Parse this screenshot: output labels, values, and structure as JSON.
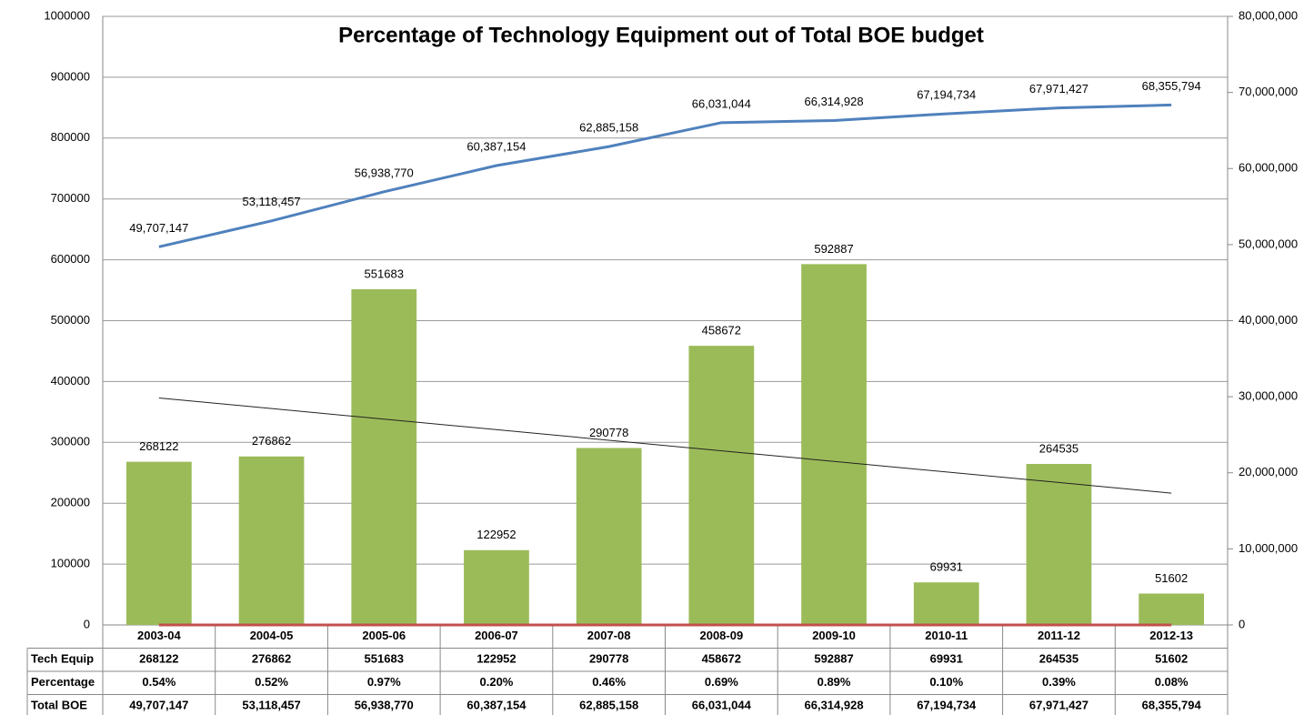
{
  "chart_data": {
    "type": "bar-line",
    "title": "Percentage of Technology Equipment out of Total BOE budget",
    "categories": [
      "2003-04",
      "2004-05",
      "2005-06",
      "2006-07",
      "2007-08",
      "2008-09",
      "2009-10",
      "2010-11",
      "2011-12",
      "2012-13"
    ],
    "series": [
      {
        "name": "Tech Equip",
        "type": "bar",
        "color": "#9bbb59",
        "axis": "y",
        "trendline": "linear",
        "values": [
          268122,
          276862,
          551683,
          122952,
          290778,
          458672,
          592887,
          69931,
          264535,
          51602
        ]
      },
      {
        "name": "Percentage",
        "type": "line",
        "color": "#c0504d",
        "axis": "y",
        "values": [
          0.54,
          0.52,
          0.97,
          0.2,
          0.46,
          0.69,
          0.89,
          0.1,
          0.39,
          0.08
        ],
        "value_labels": [
          "0.54%",
          "0.52%",
          "0.97%",
          "0.20%",
          "0.46%",
          "0.69%",
          "0.89%",
          "0.10%",
          "0.39%",
          "0.08%"
        ]
      },
      {
        "name": "Total BOE",
        "type": "line",
        "color": "#4f81bd",
        "axis": "y2",
        "values": [
          49707147,
          53118457,
          56938770,
          60387154,
          62885158,
          66031044,
          66314928,
          67194734,
          67971427,
          68355794
        ],
        "value_labels": [
          "49,707,147",
          "53,118,457",
          "56,938,770",
          "60,387,154",
          "62,885,158",
          "66,031,044",
          "66,314,928",
          "67,194,734",
          "67,971,427",
          "68,355,794"
        ]
      }
    ],
    "ylim": [
      0,
      1000000
    ],
    "yticks": [
      0,
      100000,
      200000,
      300000,
      400000,
      500000,
      600000,
      700000,
      800000,
      900000,
      1000000
    ],
    "y2lim": [
      0,
      80000000
    ],
    "y2ticks": [
      0,
      {
        "value": 10000000,
        "label": "10,000,000"
      },
      {
        "value": 20000000,
        "label": "20,000,000"
      },
      {
        "value": 30000000,
        "label": "30,000,000"
      },
      {
        "value": 40000000,
        "label": "40,000,000"
      },
      {
        "value": 50000000,
        "label": "50,000,000"
      },
      {
        "value": 60000000,
        "label": "60,000,000"
      },
      {
        "value": 70000000,
        "label": "70,000,000"
      },
      {
        "value": 80000000,
        "label": "80,000,000"
      }
    ],
    "grid": true
  }
}
